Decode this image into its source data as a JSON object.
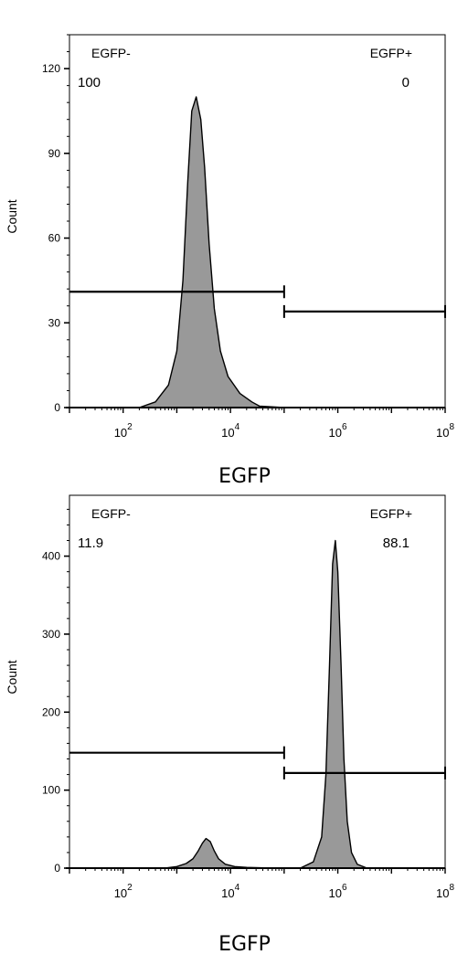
{
  "chart_data": [
    {
      "type": "histogram",
      "xlabel": "EGFP",
      "ylabel": "Count",
      "x_scale": "log",
      "xlim": [
        10,
        100000000
      ],
      "ylim": [
        0,
        132
      ],
      "x_ticks": [
        100,
        10000,
        1000000,
        100000000
      ],
      "x_tick_labels": [
        {
          "base": "10",
          "exp": "2"
        },
        {
          "base": "10",
          "exp": "4"
        },
        {
          "base": "10",
          "exp": "6"
        },
        {
          "base": "10",
          "exp": "8"
        }
      ],
      "y_ticks": [
        0,
        30,
        60,
        90,
        120
      ],
      "y_tick_labels": [
        "0",
        "30",
        "60",
        "90",
        "120"
      ],
      "fill_color": "#999999",
      "curve": {
        "x": [
          10,
          200,
          400,
          700,
          1000,
          1300,
          1600,
          1900,
          2300,
          2800,
          3300,
          4000,
          5000,
          6500,
          9000,
          15000,
          25000,
          35000,
          100000,
          100000000
        ],
        "y": [
          0,
          0,
          2,
          8,
          20,
          45,
          80,
          105,
          110,
          102,
          85,
          58,
          35,
          20,
          11,
          5,
          2,
          0.5,
          0,
          0
        ]
      },
      "gates": [
        {
          "label": "EGFP-",
          "percent": "100",
          "from": 10,
          "to": 100000,
          "level": 41
        },
        {
          "label": "EGFP+",
          "percent": "0",
          "from": 100000,
          "to": 100000000,
          "level": 34
        }
      ]
    },
    {
      "type": "histogram",
      "xlabel": "EGFP",
      "ylabel": "Count",
      "x_scale": "log",
      "xlim": [
        10,
        100000000
      ],
      "ylim": [
        0,
        478
      ],
      "x_ticks": [
        100,
        10000,
        1000000,
        100000000
      ],
      "x_tick_labels": [
        {
          "base": "10",
          "exp": "2"
        },
        {
          "base": "10",
          "exp": "4"
        },
        {
          "base": "10",
          "exp": "6"
        },
        {
          "base": "10",
          "exp": "8"
        }
      ],
      "y_ticks": [
        0,
        100,
        200,
        300,
        400
      ],
      "y_tick_labels": [
        "0",
        "100",
        "200",
        "300",
        "400"
      ],
      "fill_color": "#999999",
      "curve": {
        "x": [
          10,
          600,
          1000,
          1500,
          2000,
          2500,
          3000,
          3500,
          4200,
          5000,
          6000,
          8000,
          12000,
          20000,
          60000,
          200000,
          350000,
          500000,
          600000,
          700000,
          800000,
          900000,
          1000000,
          1150000,
          1300000,
          1500000,
          1800000,
          2300000,
          3500000,
          100000000
        ],
        "y": [
          0,
          0,
          2,
          6,
          12,
          22,
          32,
          38,
          34,
          22,
          12,
          5,
          2,
          1,
          0,
          0,
          8,
          40,
          120,
          260,
          390,
          420,
          380,
          260,
          140,
          60,
          20,
          5,
          0,
          0
        ]
      },
      "gates": [
        {
          "label": "EGFP-",
          "percent": "11.9",
          "from": 10,
          "to": 100000,
          "level": 148
        },
        {
          "label": "EGFP+",
          "percent": "88.1",
          "from": 100000,
          "to": 100000000,
          "level": 122
        }
      ]
    }
  ]
}
